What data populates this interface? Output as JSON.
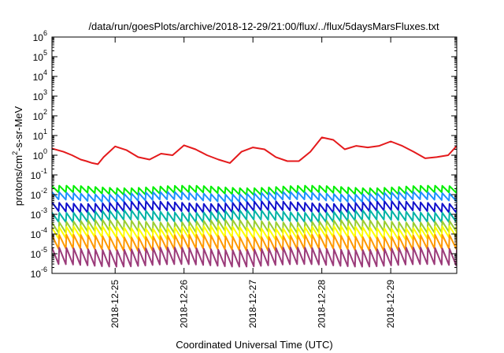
{
  "chart_data": {
    "type": "line",
    "title": "/data/run/goesPlots/archive/2018-12-29/21:00/flux/../flux/5daysMarsFluxes.txt",
    "xlabel": "Coordinated Universal Time (UTC)",
    "ylabel": {
      "base": "protons/cm",
      "sup": "2",
      "rest": "-s-sr-MeV"
    },
    "x_range": [
      "2018-12-24 02:00",
      "2018-12-29 23:00"
    ],
    "x_ticks": [
      "2018-12-25",
      "2018-12-26",
      "2018-12-27",
      "2018-12-28",
      "2018-12-29"
    ],
    "y_scale": "log",
    "ylim": [
      1e-06,
      1000000.0
    ],
    "y_ticks": [
      {
        "value": 1e-06,
        "base": "10",
        "exp": "-6"
      },
      {
        "value": 1e-05,
        "base": "10",
        "exp": "-5"
      },
      {
        "value": 0.0001,
        "base": "10",
        "exp": "-4"
      },
      {
        "value": 0.001,
        "base": "10",
        "exp": "-3"
      },
      {
        "value": 0.01,
        "base": "10",
        "exp": "-2"
      },
      {
        "value": 0.1,
        "base": "10",
        "exp": "-1"
      },
      {
        "value": 1,
        "base": "10",
        "exp": "0"
      },
      {
        "value": 10,
        "base": "10",
        "exp": "1"
      },
      {
        "value": 100,
        "base": "10",
        "exp": "2"
      },
      {
        "value": 1000,
        "base": "10",
        "exp": "3"
      },
      {
        "value": 10000,
        "base": "10",
        "exp": "4"
      },
      {
        "value": 100000,
        "base": "10",
        "exp": "5"
      },
      {
        "value": 1000000,
        "base": "10",
        "exp": "6"
      }
    ],
    "grid": false,
    "series": [
      {
        "color": "#e41a1c",
        "x": [
          "2018-12-24 02:00",
          "2018-12-24 06:00",
          "2018-12-24 09:00",
          "2018-12-24 12:00",
          "2018-12-24 14:00",
          "2018-12-24 16:00",
          "2018-12-24 18:00",
          "2018-12-24 20:00",
          "2018-12-24 22:00",
          "2018-12-25 00:00",
          "2018-12-25 04:00",
          "2018-12-25 08:00",
          "2018-12-25 12:00",
          "2018-12-25 16:00",
          "2018-12-25 20:00",
          "2018-12-26 00:00",
          "2018-12-26 04:00",
          "2018-12-26 08:00",
          "2018-12-26 12:00",
          "2018-12-26 16:00",
          "2018-12-26 20:00",
          "2018-12-27 00:00",
          "2018-12-27 04:00",
          "2018-12-27 08:00",
          "2018-12-27 12:00",
          "2018-12-27 16:00",
          "2018-12-27 20:00",
          "2018-12-28 00:00",
          "2018-12-28 04:00",
          "2018-12-28 08:00",
          "2018-12-28 12:00",
          "2018-12-28 16:00",
          "2018-12-28 20:00",
          "2018-12-29 00:00",
          "2018-12-29 04:00",
          "2018-12-29 08:00",
          "2018-12-29 12:00",
          "2018-12-29 16:00",
          "2018-12-29 20:00",
          "2018-12-29 23:00"
        ],
        "y": [
          2.2,
          1.5,
          1.0,
          0.6,
          0.5,
          0.4,
          0.35,
          0.8,
          1.5,
          2.8,
          1.8,
          0.8,
          0.6,
          1.2,
          1.0,
          3.2,
          2.0,
          1.0,
          0.6,
          0.4,
          1.5,
          2.5,
          2.0,
          0.8,
          0.5,
          0.5,
          1.5,
          8.0,
          6.0,
          2.0,
          3.0,
          2.5,
          3.0,
          5.0,
          3.0,
          1.5,
          0.7,
          0.8,
          1.0,
          3.0
        ]
      },
      {
        "color": "#00ee00",
        "base": 0.025,
        "amp": 2.2,
        "trend": 0.15
      },
      {
        "color": "#1e90ff",
        "base": 0.012,
        "amp": 2.4,
        "trend": 0.15
      },
      {
        "color": "#1010cc",
        "base": 0.004,
        "amp": 2.8,
        "trend": 0.15
      },
      {
        "color": "#00b3a6",
        "base": 0.0014,
        "amp": 3.0,
        "trend": 0.15
      },
      {
        "color": "#9acd32",
        "base": 0.00045,
        "amp": 3.4,
        "trend": 0.15
      },
      {
        "color": "#ffff00",
        "base": 0.00022,
        "amp": 3.6,
        "trend": 0.15
      },
      {
        "color": "#ff9900",
        "base": 8e-05,
        "amp": 5.0,
        "trend": 0.15
      },
      {
        "color": "#9b3b7a",
        "base": 1.8e-05,
        "amp": 7.0,
        "trend": 0.15
      }
    ]
  }
}
